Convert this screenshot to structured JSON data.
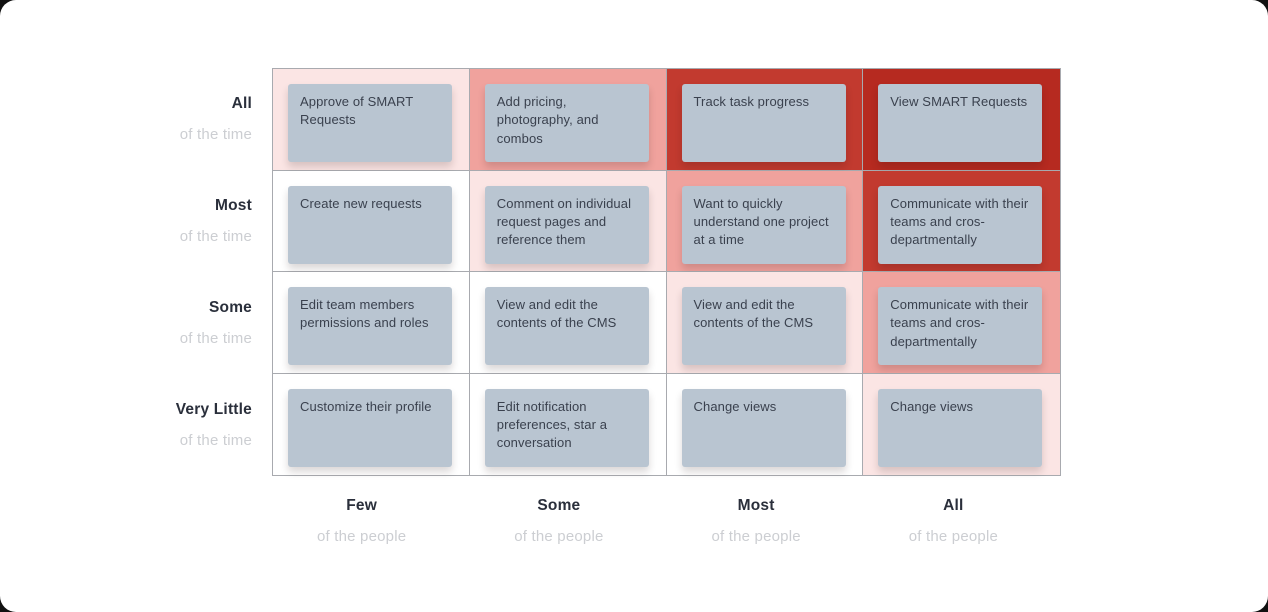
{
  "matrix": {
    "description": "behavior frequency vs audience size heat matrix",
    "rows": [
      {
        "label": "All",
        "sublabel": "of the time"
      },
      {
        "label": "Most",
        "sublabel": "of the time"
      },
      {
        "label": "Some",
        "sublabel": "of the time"
      },
      {
        "label": "Very Little",
        "sublabel": "of the time"
      }
    ],
    "columns": [
      {
        "label": "Few",
        "sublabel": "of the people"
      },
      {
        "label": "Some",
        "sublabel": "of the people"
      },
      {
        "label": "Most",
        "sublabel": "of the people"
      },
      {
        "label": "All",
        "sublabel": "of the people"
      }
    ],
    "cells": [
      [
        {
          "text": "Approve of SMART Requests",
          "heat": 1
        },
        {
          "text": "Add pricing, photography, and combos",
          "heat": 2
        },
        {
          "text": "Track task progress",
          "heat": 3
        },
        {
          "text": "View SMART Requests",
          "heat": 4
        }
      ],
      [
        {
          "text": "Create new requests",
          "heat": 0
        },
        {
          "text": "Comment on individual request pages and reference them",
          "heat": 1
        },
        {
          "text": "Want to quickly understand one project at a time",
          "heat": 2
        },
        {
          "text": "Communicate with their teams and cros-departmentally",
          "heat": 3
        }
      ],
      [
        {
          "text": "Edit team members permissions and roles",
          "heat": 0
        },
        {
          "text": "View and edit the contents of the CMS",
          "heat": 0
        },
        {
          "text": "View and edit the contents of the CMS",
          "heat": 1
        },
        {
          "text": "Communicate with their teams and cros-departmentally",
          "heat": 2
        }
      ],
      [
        {
          "text": "Customize their profile",
          "heat": 0
        },
        {
          "text": "Edit notification preferences, star a conversation",
          "heat": 0
        },
        {
          "text": "Change views",
          "heat": 0
        },
        {
          "text": "Change views",
          "heat": 1
        }
      ]
    ]
  },
  "colors": {
    "heat_scale": [
      "#ffffff",
      "#fbe5e4",
      "#f0a29d",
      "#c23a2f",
      "#b62a20"
    ],
    "card_bg": "#b9c5d1",
    "card_text": "#3a414e",
    "label_primary": "#2a2f3b",
    "label_secondary": "#ccced2",
    "grid_border": "#a8aaaf"
  }
}
